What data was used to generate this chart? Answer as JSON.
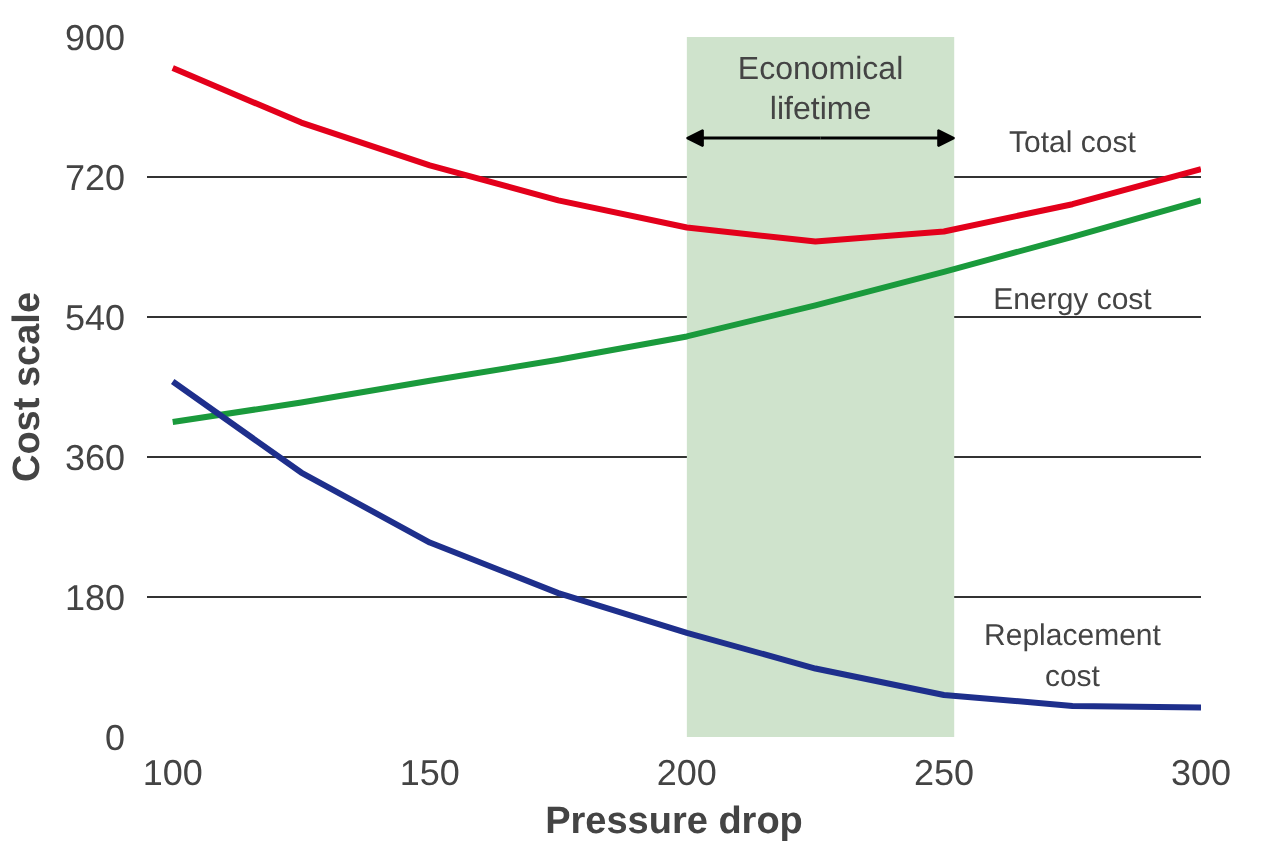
{
  "chart_data": {
    "type": "line",
    "xlabel": "Pressure drop",
    "ylabel": "Cost scale",
    "x": [
      100,
      125,
      150,
      175,
      200,
      225,
      250,
      275,
      300
    ],
    "xlim": [
      95,
      300
    ],
    "xticks": [
      100,
      150,
      200,
      250,
      300
    ],
    "ylim": [
      0,
      900
    ],
    "yticks": [
      0,
      180,
      360,
      540,
      720,
      900
    ],
    "grid": "y",
    "line_style": "solid",
    "series": [
      {
        "name": "Total cost",
        "color": "#e3001b",
        "values": [
          860,
          790,
          735,
          690,
          655,
          637,
          650,
          685,
          730
        ]
      },
      {
        "name": "Energy cost",
        "color": "#1a9a3c",
        "values": [
          405,
          430,
          458,
          485,
          515,
          555,
          598,
          643,
          690
        ]
      },
      {
        "name": "Replacement\ncost",
        "color": "#1e2f8c",
        "values": [
          457,
          340,
          250,
          185,
          134,
          88,
          54,
          40,
          38
        ]
      }
    ],
    "bands": [
      {
        "axis": "x",
        "from": 200,
        "to": 252,
        "label": "Economical\nlifetime",
        "color": "#cfe3cc"
      }
    ]
  }
}
